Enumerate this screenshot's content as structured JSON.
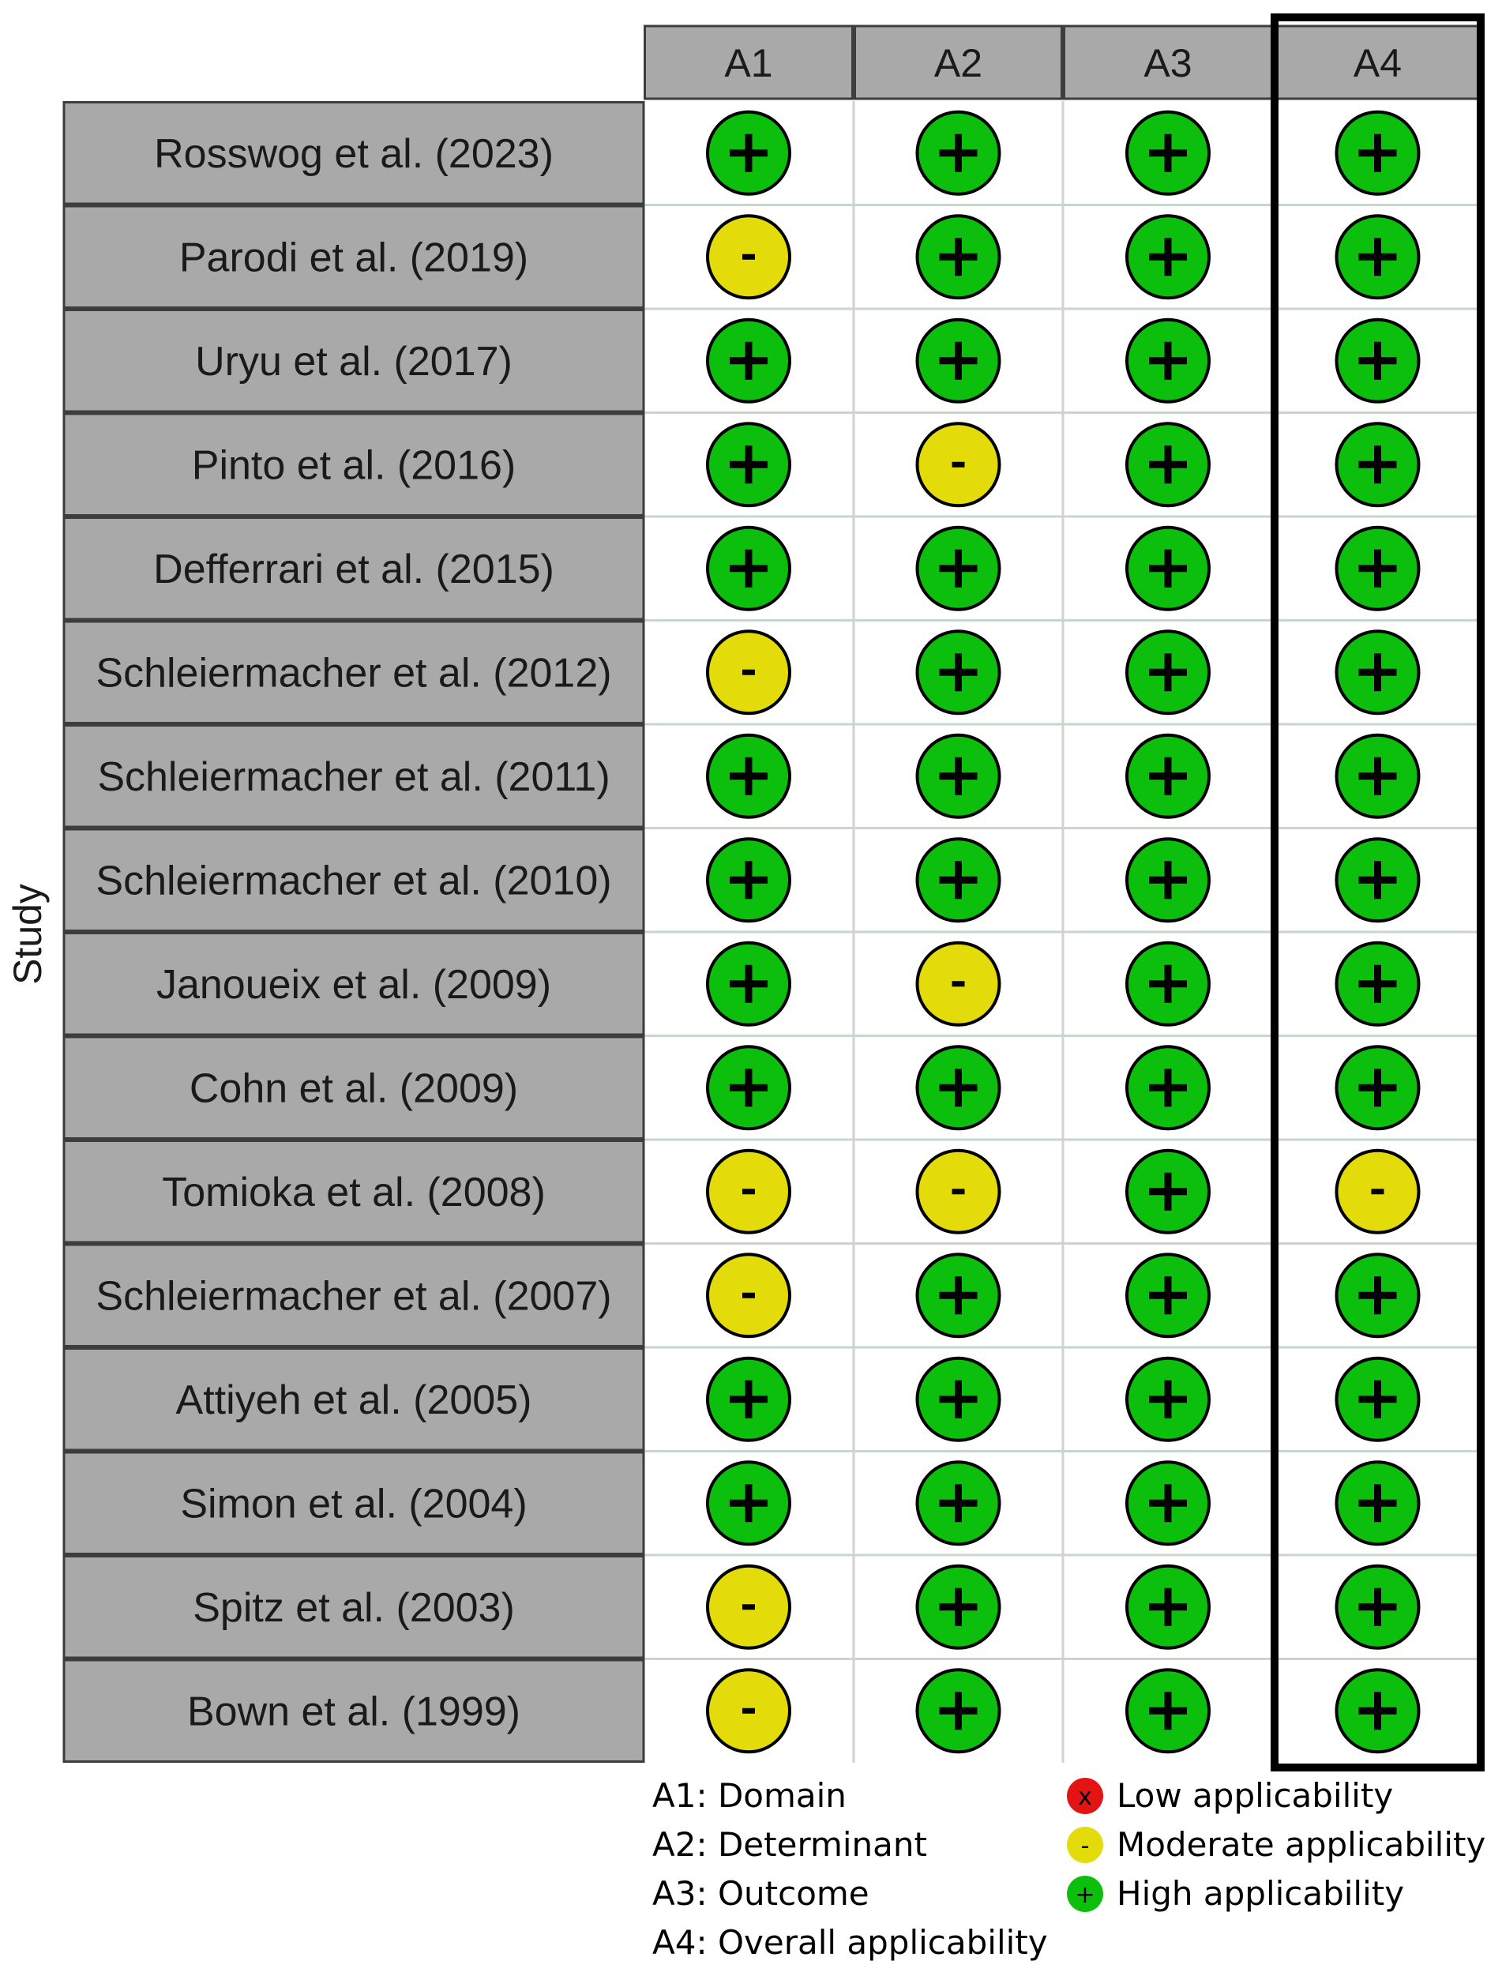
{
  "chart_data": {
    "type": "table",
    "ylabel": "Study",
    "columns": [
      "A1",
      "A2",
      "A3",
      "A4"
    ],
    "highlighted_column": "A4",
    "rows": [
      {
        "study": "Rosswog et al. (2023)",
        "ratings": [
          "+",
          "+",
          "+",
          "+"
        ]
      },
      {
        "study": "Parodi et al. (2019)",
        "ratings": [
          "-",
          "+",
          "+",
          "+"
        ]
      },
      {
        "study": "Uryu et al. (2017)",
        "ratings": [
          "+",
          "+",
          "+",
          "+"
        ]
      },
      {
        "study": "Pinto et al. (2016)",
        "ratings": [
          "+",
          "-",
          "+",
          "+"
        ]
      },
      {
        "study": "Defferrari et al. (2015)",
        "ratings": [
          "+",
          "+",
          "+",
          "+"
        ]
      },
      {
        "study": "Schleiermacher et al. (2012)",
        "ratings": [
          "-",
          "+",
          "+",
          "+"
        ]
      },
      {
        "study": "Schleiermacher et al. (2011)",
        "ratings": [
          "+",
          "+",
          "+",
          "+"
        ]
      },
      {
        "study": "Schleiermacher et al. (2010)",
        "ratings": [
          "+",
          "+",
          "+",
          "+"
        ]
      },
      {
        "study": "Janoueix et al. (2009)",
        "ratings": [
          "+",
          "-",
          "+",
          "+"
        ]
      },
      {
        "study": "Cohn et al. (2009)",
        "ratings": [
          "+",
          "+",
          "+",
          "+"
        ]
      },
      {
        "study": "Tomioka et al. (2008)",
        "ratings": [
          "-",
          "-",
          "+",
          "-"
        ]
      },
      {
        "study": "Schleiermacher et al. (2007)",
        "ratings": [
          "-",
          "+",
          "+",
          "+"
        ]
      },
      {
        "study": "Attiyeh et al. (2005)",
        "ratings": [
          "+",
          "+",
          "+",
          "+"
        ]
      },
      {
        "study": "Simon et al. (2004)",
        "ratings": [
          "+",
          "+",
          "+",
          "+"
        ]
      },
      {
        "study": "Spitz et al. (2003)",
        "ratings": [
          "-",
          "+",
          "+",
          "+"
        ]
      },
      {
        "study": "Bown et al. (1999)",
        "ratings": [
          "-",
          "+",
          "+",
          "+"
        ]
      }
    ],
    "column_legend": [
      "A1: Domain",
      "A2: Determinant",
      "A3: Outcome",
      "A4: Overall applicability"
    ],
    "rating_legend": [
      {
        "symbol": "x",
        "label": "Low applicability",
        "color": "#e41414"
      },
      {
        "symbol": "-",
        "label": "Moderate applicability",
        "color": "#e3dc0a"
      },
      {
        "symbol": "+",
        "label": "High applicability",
        "color": "#0dbf0d"
      }
    ]
  }
}
